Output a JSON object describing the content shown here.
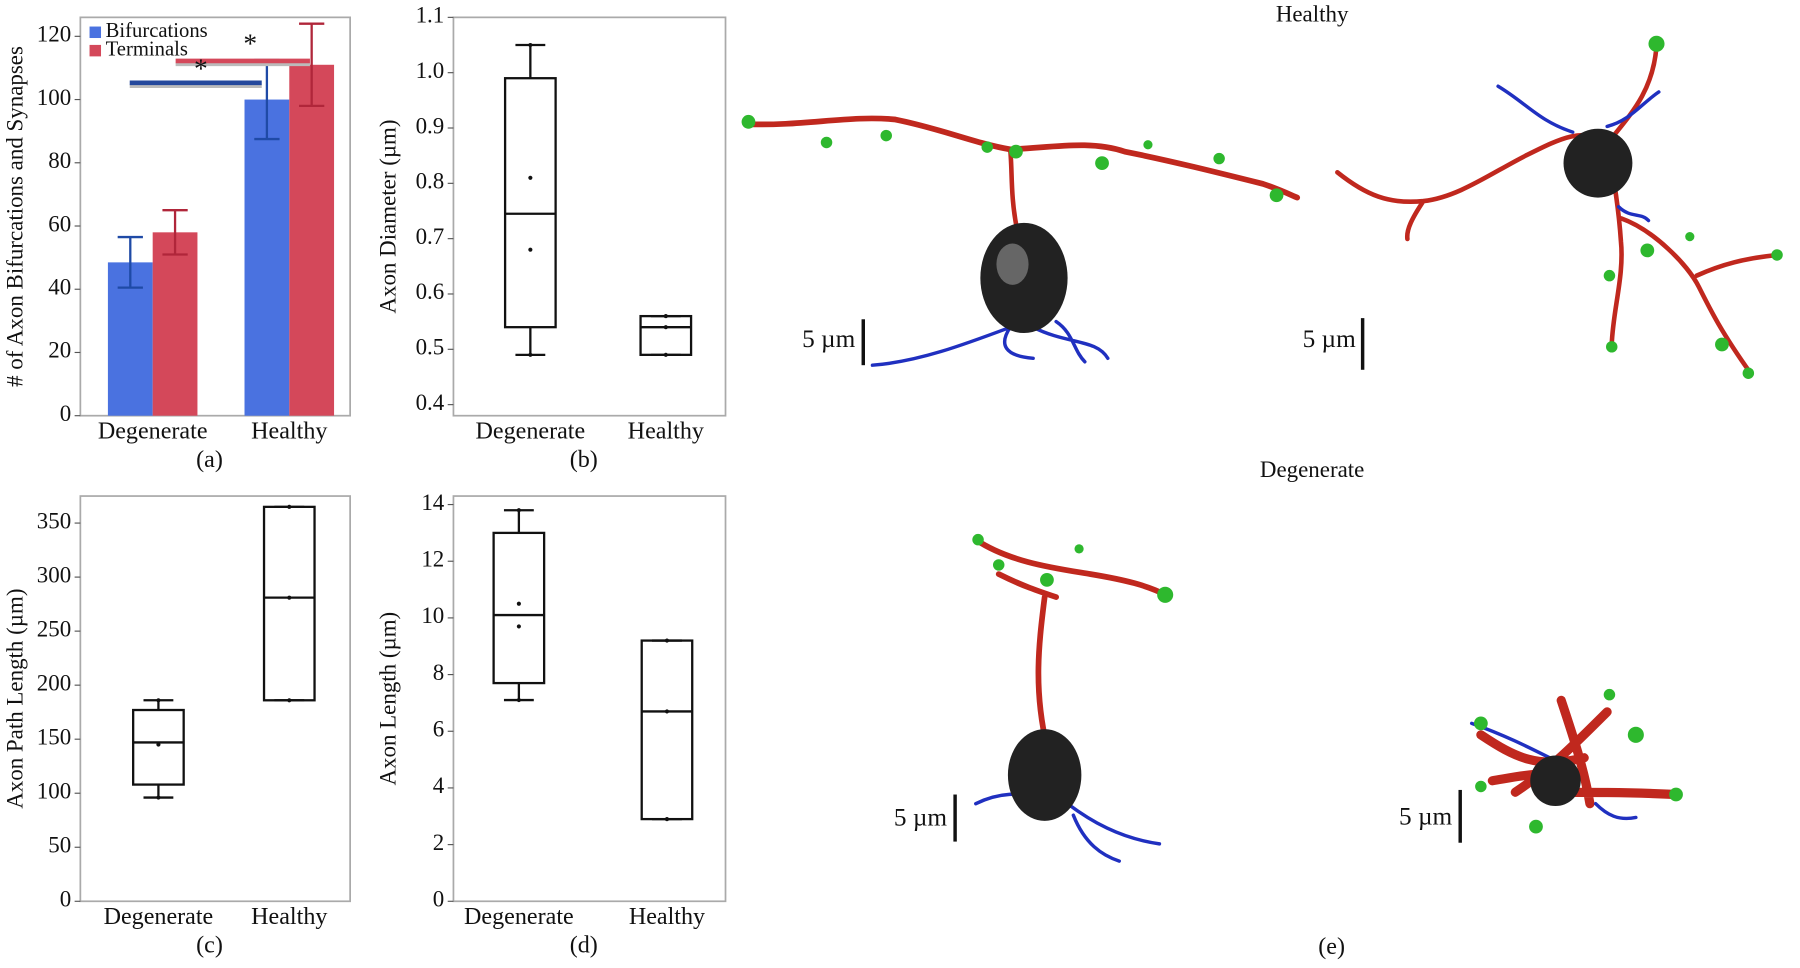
{
  "chart_data": [
    {
      "type": "bar",
      "label": "(a)",
      "y_label": "# of Axon Bifurcations and Synapses",
      "categories": [
        "Degenerate",
        "Healthy"
      ],
      "series": [
        {
          "name": "Bifurcations",
          "color": "#4a72e0",
          "error_color": "#1f4aa6",
          "values": [
            48.5,
            100
          ],
          "errors": [
            8,
            12.5
          ]
        },
        {
          "name": "Terminals",
          "color": "#d4485a",
          "error_color": "#b0263a",
          "values": [
            58,
            111
          ],
          "errors": [
            7,
            13
          ]
        }
      ],
      "annotations": [
        {
          "text": "*",
          "color": "#d4485a"
        },
        {
          "text": "*",
          "color": "#24489c"
        }
      ],
      "ylim": [
        0,
        126
      ],
      "yticks": [
        0,
        20,
        40,
        60,
        80,
        100,
        120
      ]
    },
    {
      "type": "box",
      "label": "(b)",
      "y_label": "Axon Diameter (µm)",
      "categories": [
        "Degenerate",
        "Healthy"
      ],
      "boxes": [
        {
          "min": 0.49,
          "q1": 0.54,
          "median": 0.745,
          "q3": 0.99,
          "max": 1.05,
          "points": [
            0.49,
            0.68,
            0.81,
            1.05
          ]
        },
        {
          "min": 0.49,
          "q1": 0.49,
          "median": 0.54,
          "q3": 0.56,
          "max": 0.56,
          "points": [
            0.49,
            0.54,
            0.56
          ]
        }
      ],
      "ylim": [
        0.38,
        1.1
      ],
      "yticks": [
        0.4,
        0.5,
        0.6,
        0.7,
        0.8,
        0.9,
        {
          "value": 1,
          "label": "1.0"
        },
        1.1
      ]
    },
    {
      "type": "box",
      "label": "(c)",
      "y_label": "Axon Path Length (µm)",
      "categories": [
        "Degenerate",
        "Healthy"
      ],
      "boxes": [
        {
          "min": 96,
          "q1": 108,
          "median": 147,
          "q3": 177,
          "max": 186,
          "points": [
            96,
            145,
            186
          ]
        },
        {
          "min": 186,
          "q1": 186,
          "median": 281,
          "q3": 365,
          "max": 365,
          "points": [
            186,
            281,
            365
          ]
        }
      ],
      "ylim": [
        0,
        375
      ],
      "yticks": [
        0,
        50,
        100,
        150,
        200,
        250,
        300,
        350
      ]
    },
    {
      "type": "box",
      "label": "(d)",
      "y_label": "Axon Length (µm)",
      "categories": [
        "Degenerate",
        "Healthy"
      ],
      "boxes": [
        {
          "min": 7.1,
          "q1": 7.7,
          "median": 10.1,
          "q3": 13,
          "max": 13.8,
          "points": [
            7.1,
            9.7,
            10.5,
            13.8
          ]
        },
        {
          "min": 2.9,
          "q1": 2.9,
          "median": 6.7,
          "q3": 9.2,
          "max": 9.2,
          "points": [
            2.9,
            6.7,
            9.2
          ]
        }
      ],
      "ylim": [
        0,
        14.3
      ],
      "yticks": [
        0,
        2,
        4,
        6,
        8,
        10,
        12,
        14
      ]
    }
  ],
  "panel_e": {
    "label": "(e)",
    "rows": [
      {
        "title": "Healthy",
        "scale_bars": [
          "5 µm",
          "5 µm"
        ]
      },
      {
        "title": "Degenerate",
        "scale_bars": [
          "5 µm",
          "5 µm"
        ]
      }
    ]
  }
}
